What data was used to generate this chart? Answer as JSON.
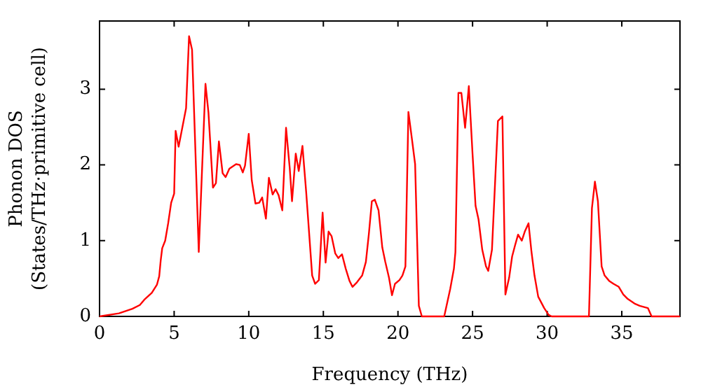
{
  "chart_data": {
    "type": "line",
    "xlabel": "Frequency (THz)",
    "ylabel": "Phonon DOS\n(States/THz·primitive cell)",
    "xlim": [
      0,
      38.9
    ],
    "ylim": [
      0,
      3.9
    ],
    "xticks": [
      0,
      5,
      10,
      15,
      20,
      25,
      30,
      35
    ],
    "yticks": [
      0,
      1,
      2,
      3
    ],
    "grid": false,
    "legend": false,
    "marker": "none",
    "line_style": "solid",
    "series": [
      {
        "color": "#ff0000",
        "x": [
          0,
          1.3,
          2.2,
          2.7,
          3.0,
          3.5,
          3.85,
          4.0,
          4.1,
          4.2,
          4.4,
          4.6,
          4.8,
          5.0,
          5.1,
          5.3,
          5.8,
          6.0,
          6.2,
          6.65,
          7.1,
          7.3,
          7.6,
          7.8,
          8.0,
          8.25,
          8.45,
          8.7,
          9.15,
          9.4,
          9.6,
          9.75,
          10.0,
          10.2,
          10.45,
          10.7,
          10.9,
          11.15,
          11.35,
          11.6,
          11.8,
          12.0,
          12.25,
          12.5,
          12.75,
          12.9,
          13.15,
          13.35,
          13.6,
          13.85,
          14.25,
          14.45,
          14.7,
          14.95,
          15.15,
          15.35,
          15.55,
          15.8,
          16.0,
          16.25,
          16.5,
          16.75,
          16.95,
          17.25,
          17.6,
          17.85,
          18.05,
          18.25,
          18.45,
          18.7,
          18.95,
          19.15,
          19.4,
          19.6,
          19.8,
          20.1,
          20.3,
          20.5,
          20.7,
          20.95,
          21.15,
          21.4,
          21.6,
          23.1,
          23.5,
          23.75,
          23.85,
          24.05,
          24.25,
          24.5,
          24.75,
          25.0,
          25.2,
          25.4,
          25.65,
          25.9,
          26.05,
          26.3,
          26.7,
          27.0,
          27.2,
          27.45,
          27.65,
          27.85,
          28.05,
          28.3,
          28.5,
          28.75,
          28.95,
          29.15,
          29.4,
          29.8,
          30.1,
          30.3,
          32.8,
          33.0,
          33.2,
          33.4,
          33.65,
          33.85,
          34.15,
          34.45,
          34.8,
          35.1,
          35.4,
          35.85,
          36.2,
          36.75,
          37.0,
          38.9
        ],
        "values": [
          0,
          0.04,
          0.1,
          0.15,
          0.22,
          0.31,
          0.42,
          0.53,
          0.74,
          0.9,
          1.0,
          1.23,
          1.5,
          1.62,
          2.45,
          2.24,
          2.75,
          3.7,
          3.52,
          0.85,
          3.07,
          2.69,
          1.7,
          1.76,
          2.31,
          1.89,
          1.84,
          1.95,
          2.01,
          2.0,
          1.9,
          1.99,
          2.41,
          1.8,
          1.49,
          1.5,
          1.57,
          1.29,
          1.83,
          1.61,
          1.68,
          1.6,
          1.4,
          2.49,
          1.95,
          1.52,
          2.15,
          1.92,
          2.25,
          1.64,
          0.54,
          0.43,
          0.48,
          1.37,
          0.71,
          1.12,
          1.06,
          0.83,
          0.77,
          0.82,
          0.63,
          0.47,
          0.39,
          0.45,
          0.54,
          0.72,
          1.09,
          1.52,
          1.54,
          1.4,
          0.91,
          0.72,
          0.51,
          0.28,
          0.43,
          0.48,
          0.54,
          0.66,
          2.7,
          2.32,
          2.01,
          0.14,
          0,
          0,
          0.36,
          0.63,
          0.85,
          2.95,
          2.95,
          2.49,
          3.04,
          2.14,
          1.46,
          1.28,
          0.88,
          0.66,
          0.6,
          0.88,
          2.58,
          2.64,
          0.29,
          0.51,
          0.79,
          0.94,
          1.08,
          1.0,
          1.12,
          1.23,
          0.85,
          0.54,
          0.26,
          0.11,
          0.02,
          0,
          0,
          1.43,
          1.78,
          1.52,
          0.66,
          0.54,
          0.47,
          0.43,
          0.39,
          0.29,
          0.23,
          0.17,
          0.14,
          0.11,
          0,
          0
        ]
      }
    ]
  }
}
